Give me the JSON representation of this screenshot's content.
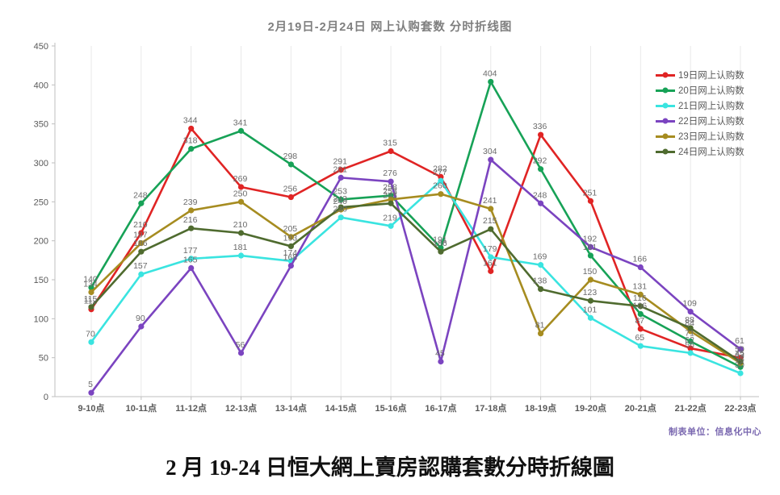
{
  "chart_title": "2月19日-2月24日 网上认购套数 分时折线图",
  "footnote": "制表单位：信息化中心",
  "caption": "2 月 19-24 日恒大網上賣房認購套數分時折線圖",
  "chart_data": {
    "type": "line",
    "title": "2月19日-2月24日 网上认购套数 分时折线图",
    "xlabel": "",
    "ylabel": "",
    "ylim": [
      0,
      450
    ],
    "ytick_step": 50,
    "grid": "vertical-light",
    "legend_position": "top-right",
    "categories": [
      "9-10点",
      "10-11点",
      "11-12点",
      "12-13点",
      "13-14点",
      "14-15点",
      "15-16点",
      "16-17点",
      "17-18点",
      "18-19点",
      "19-20点",
      "20-21点",
      "21-22点",
      "22-23点"
    ],
    "series": [
      {
        "name": "19日网上认购数",
        "color": "#e02424",
        "values": [
          112,
          210,
          344,
          269,
          256,
          291,
          315,
          282,
          161,
          336,
          251,
          87,
          62,
          50
        ]
      },
      {
        "name": "20日网上认购数",
        "color": "#17a257",
        "values": [
          140,
          248,
          318,
          341,
          298,
          253,
          258,
          191,
          404,
          292,
          181,
          106,
          71,
          38
        ]
      },
      {
        "name": "21日网上认购数",
        "color": "#3ae4e0",
        "values": [
          70,
          157,
          177,
          181,
          174,
          230,
          219,
          277,
          179,
          169,
          101,
          65,
          56,
          30
        ]
      },
      {
        "name": "22日网上认购数",
        "color": "#7b44c0",
        "values": [
          5,
          90,
          165,
          56,
          168,
          281,
          276,
          45,
          304,
          248,
          192,
          166,
          109,
          61
        ]
      },
      {
        "name": "23日网上认购数",
        "color": "#a68c20",
        "values": [
          134,
          197,
          239,
          250,
          205,
          240,
          253,
          260,
          241,
          81,
          150,
          131,
          84,
          43
        ]
      },
      {
        "name": "24日网上认购数",
        "color": "#4f6b2f",
        "values": [
          115,
          186,
          216,
          210,
          193,
          243,
          248,
          186,
          215,
          138,
          123,
          116,
          88,
          45
        ]
      }
    ]
  }
}
